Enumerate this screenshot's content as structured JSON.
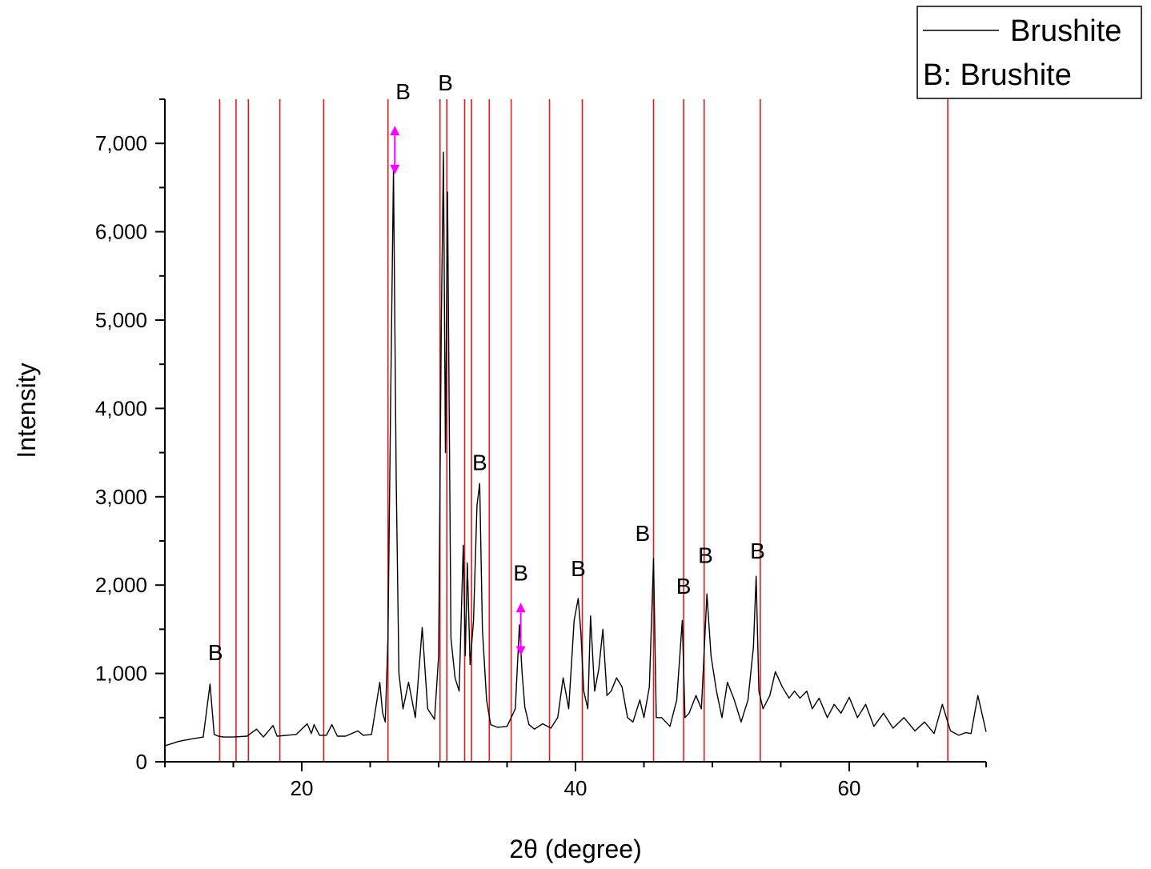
{
  "chart_data": {
    "type": "line",
    "title": "",
    "xlabel": "2θ (degree)",
    "ylabel": "Intensity",
    "xlim": [
      10,
      70
    ],
    "ylim": [
      0,
      7500
    ],
    "x_ticks": [
      20,
      40,
      60
    ],
    "y_ticks": [
      0,
      1000,
      2000,
      3000,
      4000,
      5000,
      6000,
      7000
    ],
    "x_tick_labels": [
      "20",
      "40",
      "60"
    ],
    "y_tick_labels": [
      "0",
      "1,000",
      "2,000",
      "3,000",
      "4,000",
      "5,000",
      "6,000",
      "7,000"
    ],
    "grid": false,
    "legend": {
      "placement": "top-right",
      "entries": [
        "Brushite",
        "B: Brushite"
      ]
    },
    "series": [
      {
        "name": "Brushite",
        "color": "#000000",
        "x": [
          10.0,
          11.0,
          12.0,
          12.8,
          13.3,
          13.6,
          13.9,
          14.3,
          15.0,
          16.0,
          16.7,
          17.2,
          17.9,
          18.2,
          18.9,
          19.6,
          20.4,
          20.7,
          20.9,
          21.3,
          21.8,
          22.2,
          22.6,
          23.2,
          24.1,
          24.5,
          25.1,
          25.7,
          25.9,
          26.1,
          26.3,
          26.5,
          26.7,
          26.9,
          27.1,
          27.4,
          27.8,
          28.3,
          28.8,
          29.2,
          29.7,
          30.0,
          30.2,
          30.35,
          30.5,
          30.65,
          30.9,
          31.2,
          31.5,
          31.8,
          31.95,
          32.1,
          32.3,
          32.55,
          32.8,
          33.0,
          33.2,
          33.5,
          33.8,
          34.3,
          35.0,
          35.6,
          35.9,
          36.1,
          36.3,
          36.6,
          37.0,
          37.6,
          38.2,
          38.7,
          39.1,
          39.5,
          39.9,
          40.2,
          40.4,
          40.6,
          40.9,
          41.1,
          41.4,
          41.7,
          42.0,
          42.3,
          42.6,
          43.0,
          43.4,
          43.8,
          44.2,
          44.7,
          45.0,
          45.4,
          45.7,
          45.9,
          46.3,
          46.9,
          47.4,
          47.8,
          48.0,
          48.3,
          48.8,
          49.2,
          49.6,
          49.9,
          50.3,
          50.7,
          51.1,
          51.6,
          52.1,
          52.6,
          53.0,
          53.2,
          53.4,
          53.7,
          54.2,
          54.6,
          55.1,
          55.6,
          56.0,
          56.4,
          56.9,
          57.3,
          57.8,
          58.4,
          58.9,
          59.4,
          60.0,
          60.6,
          61.2,
          61.8,
          62.5,
          63.2,
          64.0,
          64.8,
          65.5,
          66.2,
          66.8,
          67.4,
          68.0,
          68.5,
          68.9,
          69.4,
          70.0
        ],
        "y": [
          180,
          230,
          260,
          280,
          880,
          310,
          290,
          280,
          280,
          290,
          370,
          280,
          410,
          290,
          300,
          310,
          430,
          320,
          420,
          300,
          300,
          420,
          290,
          290,
          350,
          300,
          310,
          900,
          560,
          450,
          1400,
          4200,
          6700,
          3200,
          1000,
          600,
          900,
          500,
          1520,
          600,
          480,
          1200,
          5000,
          6900,
          3500,
          6450,
          1400,
          950,
          800,
          2450,
          1200,
          2250,
          1100,
          1600,
          2900,
          3150,
          1500,
          700,
          420,
          390,
          400,
          600,
          1550,
          1000,
          620,
          420,
          370,
          430,
          380,
          500,
          950,
          600,
          1600,
          1850,
          1450,
          800,
          600,
          1650,
          800,
          1050,
          1500,
          750,
          800,
          950,
          850,
          500,
          450,
          700,
          500,
          850,
          2300,
          500,
          500,
          400,
          700,
          1600,
          500,
          550,
          750,
          600,
          1900,
          1200,
          800,
          500,
          900,
          700,
          450,
          700,
          1300,
          2100,
          800,
          600,
          750,
          1020,
          850,
          720,
          800,
          720,
          800,
          600,
          720,
          500,
          650,
          550,
          730,
          500,
          650,
          400,
          550,
          380,
          500,
          350,
          450,
          320,
          650,
          350,
          300,
          330,
          320,
          750,
          340
        ]
      }
    ],
    "reference_lines": {
      "color": "#e41a1c",
      "x": [
        14.0,
        15.2,
        16.1,
        18.4,
        21.6,
        26.3,
        30.1,
        30.6,
        31.9,
        32.4,
        33.7,
        35.3,
        38.1,
        40.5,
        45.7,
        47.9,
        49.4,
        53.5,
        67.2
      ]
    },
    "peak_labels": [
      {
        "text": "B",
        "x": 13.7,
        "y": 1150
      },
      {
        "text": "B",
        "x": 27.4,
        "y": 7500
      },
      {
        "text": "B",
        "x": 30.5,
        "y": 7600
      },
      {
        "text": "B",
        "x": 33.0,
        "y": 3300
      },
      {
        "text": "B",
        "x": 36.0,
        "y": 2050
      },
      {
        "text": "B",
        "x": 40.2,
        "y": 2100
      },
      {
        "text": "B",
        "x": 44.9,
        "y": 2500
      },
      {
        "text": "B",
        "x": 47.9,
        "y": 1900
      },
      {
        "text": "B",
        "x": 49.5,
        "y": 2250
      },
      {
        "text": "B",
        "x": 53.3,
        "y": 2300
      }
    ],
    "markers": {
      "color": "#ff00ff",
      "items": [
        {
          "x": 26.8,
          "y_top": 7200,
          "y_bottom": 6650
        },
        {
          "x": 36.0,
          "y_top": 1800,
          "y_bottom": 1200
        }
      ]
    }
  }
}
